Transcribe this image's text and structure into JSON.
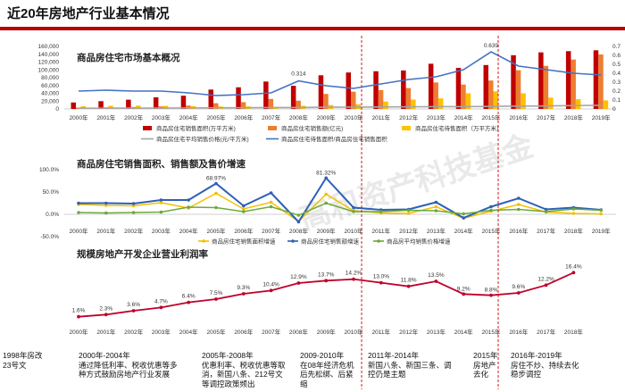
{
  "page": {
    "title": "近20年房地产行业基本情况",
    "watermark": "高和资产科技基金"
  },
  "colors": {
    "accent": "#b30000",
    "area": "#c00000",
    "sales": "#ed7d31",
    "avail": "#ffc000",
    "price": "#a5a5a5",
    "ratio": "#4472c4",
    "growth_area": "#f2c000",
    "growth_sales": "#2e5fb8",
    "growth_price": "#6aaa3a",
    "profit": "#c0002a",
    "divider": "#cc0000"
  },
  "phases": [
    {
      "l1": "1998年房改",
      "l2": "23号文",
      "l3": ""
    },
    {
      "l1": "2000年-2004年",
      "l2": "通过降低利率、税收优惠等多",
      "l3": "种方式鼓励房地产行业发展"
    },
    {
      "l1": "2005年-2008年",
      "l2": "优惠利率、税收优惠等取",
      "l3": "消，新国八条、212号文",
      "l4": "等调控政策频出"
    },
    {
      "l1": "2009-2010年",
      "l2": "在08年经济危机",
      "l3": "后先松绑、后紧",
      "l4": "缩"
    },
    {
      "l1": "2011年-2014年",
      "l2": "新国八条、新国三条、调",
      "l3": "控仍是主题"
    },
    {
      "l1": "2015年",
      "l2": "房地产",
      "l3": "去化"
    },
    {
      "l1": "2016年-2019年",
      "l2": "房住不炒、持续去化",
      "l3": "稳步调控"
    }
  ],
  "chart_data": [
    {
      "type": "bar",
      "title": "商品房住宅市场基本概况",
      "categories": [
        "2000年",
        "2001年",
        "2002年",
        "2003年",
        "2004年",
        "2005年",
        "2006年",
        "2007年",
        "2008年",
        "2009年",
        "2010年",
        "2011年",
        "2012年",
        "2013年",
        "2014年",
        "2015年",
        "2016年",
        "2017年",
        "2018年",
        "2019年"
      ],
      "y_left_ticks": [
        "0",
        "20,000",
        "40,000",
        "60,000",
        "80,000",
        "100,000",
        "120,000",
        "140,000",
        "160,000"
      ],
      "y_right_ticks": [
        "0",
        "0.1",
        "0.2",
        "0.3",
        "0.4",
        "0.5",
        "0.6",
        "0.7"
      ],
      "ylim_left": [
        0,
        160000
      ],
      "ylim_right": [
        0,
        0.7
      ],
      "series": [
        {
          "name": "商品房住宅销售面积(万平方米)",
          "kind": "bar",
          "values": [
            16570,
            19939,
            23702,
            29779,
            33820,
            49588,
            55423,
            70136,
            59280,
            86185,
            93377,
            96528,
            98468,
            115723,
            105188,
            112412,
            137540,
            144789,
            147929,
            150144
          ]
        },
        {
          "name": "商品房住宅销售额(亿元)",
          "kind": "bar",
          "values": [
            3229,
            4021,
            4957,
            6543,
            8619,
            14564,
            17288,
            25566,
            21196,
            38433,
            44121,
            48198,
            53467,
            67695,
            62411,
            72770,
            99064,
            110240,
            126394,
            139440
          ]
        },
        {
          "name": "商品房住宅待售面积（万平方米）",
          "kind": "bar",
          "values": [
            7000,
            8000,
            8500,
            7800,
            6800,
            6200,
            6400,
            5400,
            8000,
            10000,
            12000,
            19000,
            24000,
            27000,
            40000,
            45000,
            40000,
            29000,
            25000,
            22000
          ]
        },
        {
          "name": "商品房住宅平均销售价格(元/平方米)",
          "kind": "line",
          "axis": "left",
          "values": [
            1948,
            2017,
            2092,
            2197,
            2549,
            2937,
            3119,
            3645,
            3576,
            4459,
            4725,
            4993,
            5430,
            5850,
            5933,
            6473,
            7203,
            7614,
            8544,
            9287
          ]
        },
        {
          "name": "商品房住宅待售面积/商品房住宅销售面积",
          "kind": "line",
          "axis": "right",
          "values": [
            0.2,
            0.21,
            0.2,
            0.2,
            0.18,
            0.15,
            0.16,
            0.18,
            0.314,
            0.26,
            0.23,
            0.28,
            0.33,
            0.36,
            0.44,
            0.639,
            0.48,
            0.44,
            0.4,
            0.38
          ]
        }
      ],
      "annotations": [
        "0.314",
        "0.639"
      ]
    },
    {
      "type": "line",
      "title": "商品房住宅销售面积、销售额及售价增速",
      "categories": [
        "2000年",
        "2001年",
        "2002年",
        "2003年",
        "2004年",
        "2005年",
        "2006年",
        "2007年",
        "2008年",
        "2009年",
        "2010年",
        "2011年",
        "2012年",
        "2013年",
        "2014年",
        "2015年",
        "2016年",
        "2017年",
        "2018年",
        "2019年"
      ],
      "y_ticks": [
        "-50.0%",
        "0.0%",
        "50.0%",
        "100.0%"
      ],
      "ylim": [
        -50,
        100
      ],
      "series": [
        {
          "name": "商品房住宅销售面积增速",
          "values": [
            22,
            20,
            19,
            26,
            14,
            47,
            12,
            27,
            -16,
            45,
            8,
            3,
            2,
            17,
            -9,
            7,
            22,
            5,
            2,
            1
          ]
        },
        {
          "name": "商品房住宅销售额增速",
          "values": [
            25,
            25,
            24,
            32,
            32,
            68.97,
            19,
            48,
            -17,
            81.32,
            15,
            10,
            11,
            27,
            -8,
            17,
            36,
            11,
            15,
            10
          ]
        },
        {
          "name": "商品房平均销售价格增速",
          "values": [
            4,
            3,
            4,
            5,
            16,
            15,
            6,
            17,
            -2,
            25,
            6,
            6,
            9,
            8,
            1,
            9,
            11,
            6,
            12,
            9
          ]
        }
      ],
      "annotations": [
        "68.97%",
        "81.32%"
      ]
    },
    {
      "type": "line",
      "title": "规模房地产开发企业营业利润率",
      "categories": [
        "2000年",
        "2001年",
        "2002年",
        "2003年",
        "2004年",
        "2005年",
        "2006年",
        "2007年",
        "2008年",
        "2009年",
        "2010年",
        "2011年",
        "2012年",
        "2013年",
        "2014年",
        "2015年",
        "2016年",
        "2017年",
        "2018年"
      ],
      "series": [
        {
          "name": "营业利润率",
          "values": [
            1.6,
            2.3,
            3.6,
            4.7,
            6.4,
            7.5,
            9.3,
            10.4,
            12.9,
            13.7,
            14.2,
            13.0,
            11.8,
            13.5,
            9.2,
            8.8,
            9.6,
            12.2,
            16.4
          ]
        }
      ],
      "data_labels": [
        "1.6%",
        "2.3%",
        "3.6%",
        "4.7%",
        "6.4%",
        "7.5%",
        "9.3%",
        "10.4%",
        "12.9%",
        "13.7%",
        "14.2%",
        "13.0%",
        "11.8%",
        "13.5%",
        "9.2%",
        "8.8%",
        "9.6%",
        "12.2%",
        "16.4%"
      ]
    }
  ]
}
